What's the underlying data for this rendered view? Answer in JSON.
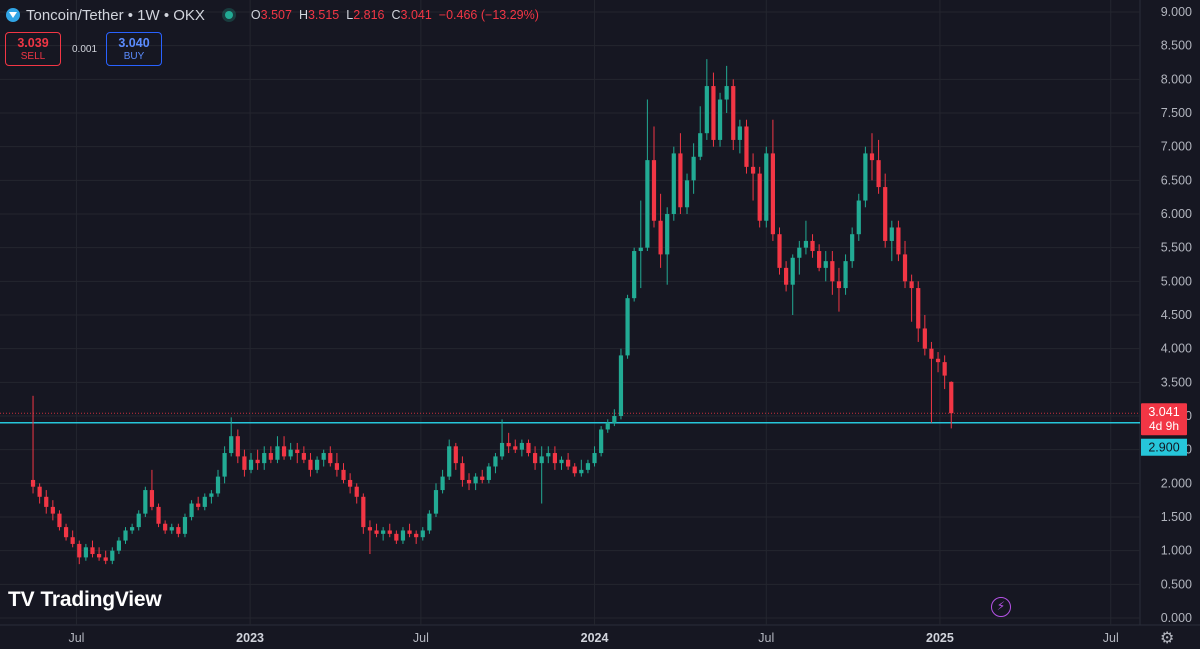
{
  "header": {
    "title": "Toncoin/Tether • 1W • OKX",
    "ohlc": [
      {
        "k": "O",
        "v": "3.507"
      },
      {
        "k": "H",
        "v": "3.515"
      },
      {
        "k": "L",
        "v": "2.816"
      },
      {
        "k": "C",
        "v": "3.041"
      },
      {
        "k": "",
        "v": "−0.466 (−13.29%)"
      }
    ]
  },
  "trade": {
    "sell_price": "3.039",
    "sell_label": "SELL",
    "spread": "0.001",
    "buy_price": "3.040",
    "buy_label": "BUY"
  },
  "logo_text": "TradingView",
  "icons": {
    "lightning": "lightning-icon",
    "settings": "gear-icon"
  },
  "colors": {
    "background": "#161722",
    "up": "#22ab94",
    "down": "#f23645",
    "hline": "#26c6da",
    "grid": "#24262f",
    "text": "#b2b5be"
  },
  "chart_data": {
    "type": "candlestick",
    "y_axis": {
      "min": 0,
      "max": 9,
      "ticks": [
        "9.000",
        "8.500",
        "8.000",
        "7.500",
        "7.000",
        "6.500",
        "6.000",
        "5.500",
        "5.000",
        "4.500",
        "4.000",
        "3.500",
        "3.000",
        "2.500",
        "2.000",
        "1.500",
        "1.000",
        "0.500",
        "0.000"
      ]
    },
    "x_axis": {
      "ticks": [
        "Jul",
        "2023",
        "Jul",
        "2024",
        "Jul",
        "2025",
        "Jul"
      ],
      "range": [
        "2022-04-11",
        "2025-08-01"
      ]
    },
    "price_label": {
      "price": 3.041,
      "text": "3.041",
      "countdown": "4d 9h"
    },
    "horizontal_line": {
      "price": 2.9,
      "text": "2.900"
    },
    "candles": [
      [
        2.05,
        3.3,
        1.85,
        1.95
      ],
      [
        1.95,
        2.0,
        1.7,
        1.8
      ],
      [
        1.8,
        1.9,
        1.55,
        1.65
      ],
      [
        1.65,
        1.75,
        1.45,
        1.55
      ],
      [
        1.55,
        1.6,
        1.3,
        1.35
      ],
      [
        1.35,
        1.4,
        1.15,
        1.2
      ],
      [
        1.2,
        1.3,
        1.05,
        1.1
      ],
      [
        1.1,
        1.15,
        0.8,
        0.9
      ],
      [
        0.9,
        1.1,
        0.85,
        1.05
      ],
      [
        1.05,
        1.15,
        0.9,
        0.95
      ],
      [
        0.95,
        1.05,
        0.85,
        0.9
      ],
      [
        0.9,
        1.0,
        0.8,
        0.85
      ],
      [
        0.85,
        1.05,
        0.8,
        1.0
      ],
      [
        1.0,
        1.2,
        0.95,
        1.15
      ],
      [
        1.15,
        1.35,
        1.1,
        1.3
      ],
      [
        1.3,
        1.4,
        1.25,
        1.35
      ],
      [
        1.35,
        1.6,
        1.3,
        1.55
      ],
      [
        1.55,
        1.95,
        1.5,
        1.9
      ],
      [
        1.9,
        2.2,
        1.6,
        1.65
      ],
      [
        1.65,
        1.7,
        1.35,
        1.4
      ],
      [
        1.4,
        1.45,
        1.25,
        1.3
      ],
      [
        1.3,
        1.4,
        1.25,
        1.35
      ],
      [
        1.35,
        1.4,
        1.2,
        1.25
      ],
      [
        1.25,
        1.55,
        1.2,
        1.5
      ],
      [
        1.5,
        1.75,
        1.45,
        1.7
      ],
      [
        1.7,
        1.8,
        1.6,
        1.65
      ],
      [
        1.65,
        1.85,
        1.6,
        1.8
      ],
      [
        1.8,
        1.9,
        1.7,
        1.85
      ],
      [
        1.85,
        2.2,
        1.8,
        2.1
      ],
      [
        2.1,
        2.55,
        2.0,
        2.45
      ],
      [
        2.45,
        2.98,
        2.4,
        2.7
      ],
      [
        2.7,
        2.8,
        2.3,
        2.4
      ],
      [
        2.4,
        2.5,
        2.1,
        2.2
      ],
      [
        2.2,
        2.45,
        2.15,
        2.35
      ],
      [
        2.35,
        2.5,
        2.2,
        2.3
      ],
      [
        2.3,
        2.55,
        2.2,
        2.45
      ],
      [
        2.45,
        2.55,
        2.3,
        2.35
      ],
      [
        2.35,
        2.7,
        2.3,
        2.55
      ],
      [
        2.55,
        2.7,
        2.35,
        2.4
      ],
      [
        2.4,
        2.6,
        2.35,
        2.5
      ],
      [
        2.5,
        2.6,
        2.3,
        2.45
      ],
      [
        2.45,
        2.55,
        2.3,
        2.35
      ],
      [
        2.35,
        2.45,
        2.1,
        2.2
      ],
      [
        2.2,
        2.4,
        2.15,
        2.35
      ],
      [
        2.35,
        2.5,
        2.25,
        2.45
      ],
      [
        2.45,
        2.55,
        2.25,
        2.3
      ],
      [
        2.3,
        2.45,
        2.1,
        2.2
      ],
      [
        2.2,
        2.3,
        2.0,
        2.05
      ],
      [
        2.05,
        2.15,
        1.85,
        1.95
      ],
      [
        1.95,
        2.0,
        1.7,
        1.8
      ],
      [
        1.8,
        1.85,
        1.25,
        1.35
      ],
      [
        1.35,
        1.45,
        0.95,
        1.3
      ],
      [
        1.3,
        1.4,
        1.2,
        1.25
      ],
      [
        1.25,
        1.35,
        1.15,
        1.3
      ],
      [
        1.3,
        1.4,
        1.2,
        1.25
      ],
      [
        1.25,
        1.3,
        1.1,
        1.15
      ],
      [
        1.15,
        1.35,
        1.1,
        1.3
      ],
      [
        1.3,
        1.4,
        1.2,
        1.25
      ],
      [
        1.25,
        1.3,
        1.1,
        1.2
      ],
      [
        1.2,
        1.35,
        1.15,
        1.3
      ],
      [
        1.3,
        1.6,
        1.25,
        1.55
      ],
      [
        1.55,
        2.0,
        1.5,
        1.9
      ],
      [
        1.9,
        2.2,
        1.85,
        2.1
      ],
      [
        2.1,
        2.65,
        2.05,
        2.55
      ],
      [
        2.55,
        2.6,
        2.2,
        2.3
      ],
      [
        2.3,
        2.4,
        1.95,
        2.05
      ],
      [
        2.05,
        2.15,
        1.9,
        2.0
      ],
      [
        2.0,
        2.15,
        1.9,
        2.1
      ],
      [
        2.1,
        2.2,
        2.0,
        2.05
      ],
      [
        2.05,
        2.3,
        2.0,
        2.25
      ],
      [
        2.25,
        2.45,
        2.15,
        2.4
      ],
      [
        2.4,
        2.95,
        2.35,
        2.6
      ],
      [
        2.6,
        2.75,
        2.45,
        2.55
      ],
      [
        2.55,
        2.65,
        2.45,
        2.5
      ],
      [
        2.5,
        2.65,
        2.4,
        2.6
      ],
      [
        2.6,
        2.65,
        2.4,
        2.45
      ],
      [
        2.45,
        2.55,
        2.2,
        2.3
      ],
      [
        2.3,
        2.55,
        1.7,
        2.4
      ],
      [
        2.4,
        2.55,
        2.3,
        2.45
      ],
      [
        2.45,
        2.55,
        2.2,
        2.3
      ],
      [
        2.3,
        2.4,
        2.2,
        2.35
      ],
      [
        2.35,
        2.45,
        2.2,
        2.25
      ],
      [
        2.25,
        2.3,
        2.1,
        2.15
      ],
      [
        2.15,
        2.35,
        2.1,
        2.2
      ],
      [
        2.2,
        2.35,
        2.15,
        2.3
      ],
      [
        2.3,
        2.55,
        2.25,
        2.45
      ],
      [
        2.45,
        2.85,
        2.4,
        2.8
      ],
      [
        2.8,
        2.95,
        2.75,
        2.9
      ],
      [
        2.9,
        3.1,
        2.85,
        3.0
      ],
      [
        3.0,
        4.0,
        2.95,
        3.9
      ],
      [
        3.9,
        4.8,
        3.85,
        4.75
      ],
      [
        4.75,
        5.5,
        4.7,
        5.45
      ],
      [
        5.45,
        6.2,
        4.9,
        5.5
      ],
      [
        5.5,
        7.7,
        5.45,
        6.8
      ],
      [
        6.8,
        7.3,
        5.8,
        5.9
      ],
      [
        5.9,
        6.3,
        5.2,
        5.4
      ],
      [
        5.4,
        6.1,
        4.95,
        6.0
      ],
      [
        6.0,
        7.0,
        5.9,
        6.9
      ],
      [
        6.9,
        7.2,
        6.0,
        6.1
      ],
      [
        6.1,
        6.6,
        6.0,
        6.5
      ],
      [
        6.5,
        7.05,
        6.3,
        6.85
      ],
      [
        6.85,
        7.6,
        6.8,
        7.2
      ],
      [
        7.2,
        8.3,
        7.1,
        7.9
      ],
      [
        7.9,
        8.1,
        7.0,
        7.1
      ],
      [
        7.1,
        7.8,
        7.0,
        7.7
      ],
      [
        7.7,
        8.2,
        7.5,
        7.9
      ],
      [
        7.9,
        8.0,
        6.95,
        7.1
      ],
      [
        7.1,
        7.4,
        6.9,
        7.3
      ],
      [
        7.3,
        7.4,
        6.6,
        6.7
      ],
      [
        6.7,
        6.9,
        6.2,
        6.6
      ],
      [
        6.6,
        6.7,
        5.8,
        5.9
      ],
      [
        5.9,
        7.0,
        5.8,
        6.9
      ],
      [
        6.9,
        7.4,
        5.6,
        5.7
      ],
      [
        5.7,
        5.8,
        5.1,
        5.2
      ],
      [
        5.2,
        5.3,
        4.85,
        4.95
      ],
      [
        4.95,
        5.4,
        4.5,
        5.35
      ],
      [
        5.35,
        5.6,
        5.1,
        5.5
      ],
      [
        5.5,
        5.9,
        5.4,
        5.6
      ],
      [
        5.6,
        5.7,
        5.35,
        5.45
      ],
      [
        5.45,
        5.55,
        5.15,
        5.2
      ],
      [
        5.2,
        5.45,
        5.0,
        5.3
      ],
      [
        5.3,
        5.45,
        4.8,
        5.0
      ],
      [
        5.0,
        5.2,
        4.55,
        4.9
      ],
      [
        4.9,
        5.4,
        4.8,
        5.3
      ],
      [
        5.3,
        5.8,
        5.2,
        5.7
      ],
      [
        5.7,
        6.3,
        5.6,
        6.2
      ],
      [
        6.2,
        7.0,
        6.1,
        6.9
      ],
      [
        6.9,
        7.2,
        6.5,
        6.8
      ],
      [
        6.8,
        7.1,
        6.3,
        6.4
      ],
      [
        6.4,
        6.6,
        5.5,
        5.6
      ],
      [
        5.6,
        5.9,
        5.3,
        5.8
      ],
      [
        5.8,
        5.9,
        5.3,
        5.4
      ],
      [
        5.4,
        5.6,
        4.9,
        5.0
      ],
      [
        5.0,
        5.1,
        4.4,
        4.9
      ],
      [
        4.9,
        5.0,
        4.1,
        4.3
      ],
      [
        4.3,
        4.5,
        3.9,
        4.0
      ],
      [
        4.0,
        4.1,
        2.9,
        3.85
      ],
      [
        3.85,
        3.95,
        3.65,
        3.8
      ],
      [
        3.8,
        3.9,
        3.4,
        3.6
      ],
      [
        3.507,
        3.515,
        2.816,
        3.041
      ]
    ]
  }
}
